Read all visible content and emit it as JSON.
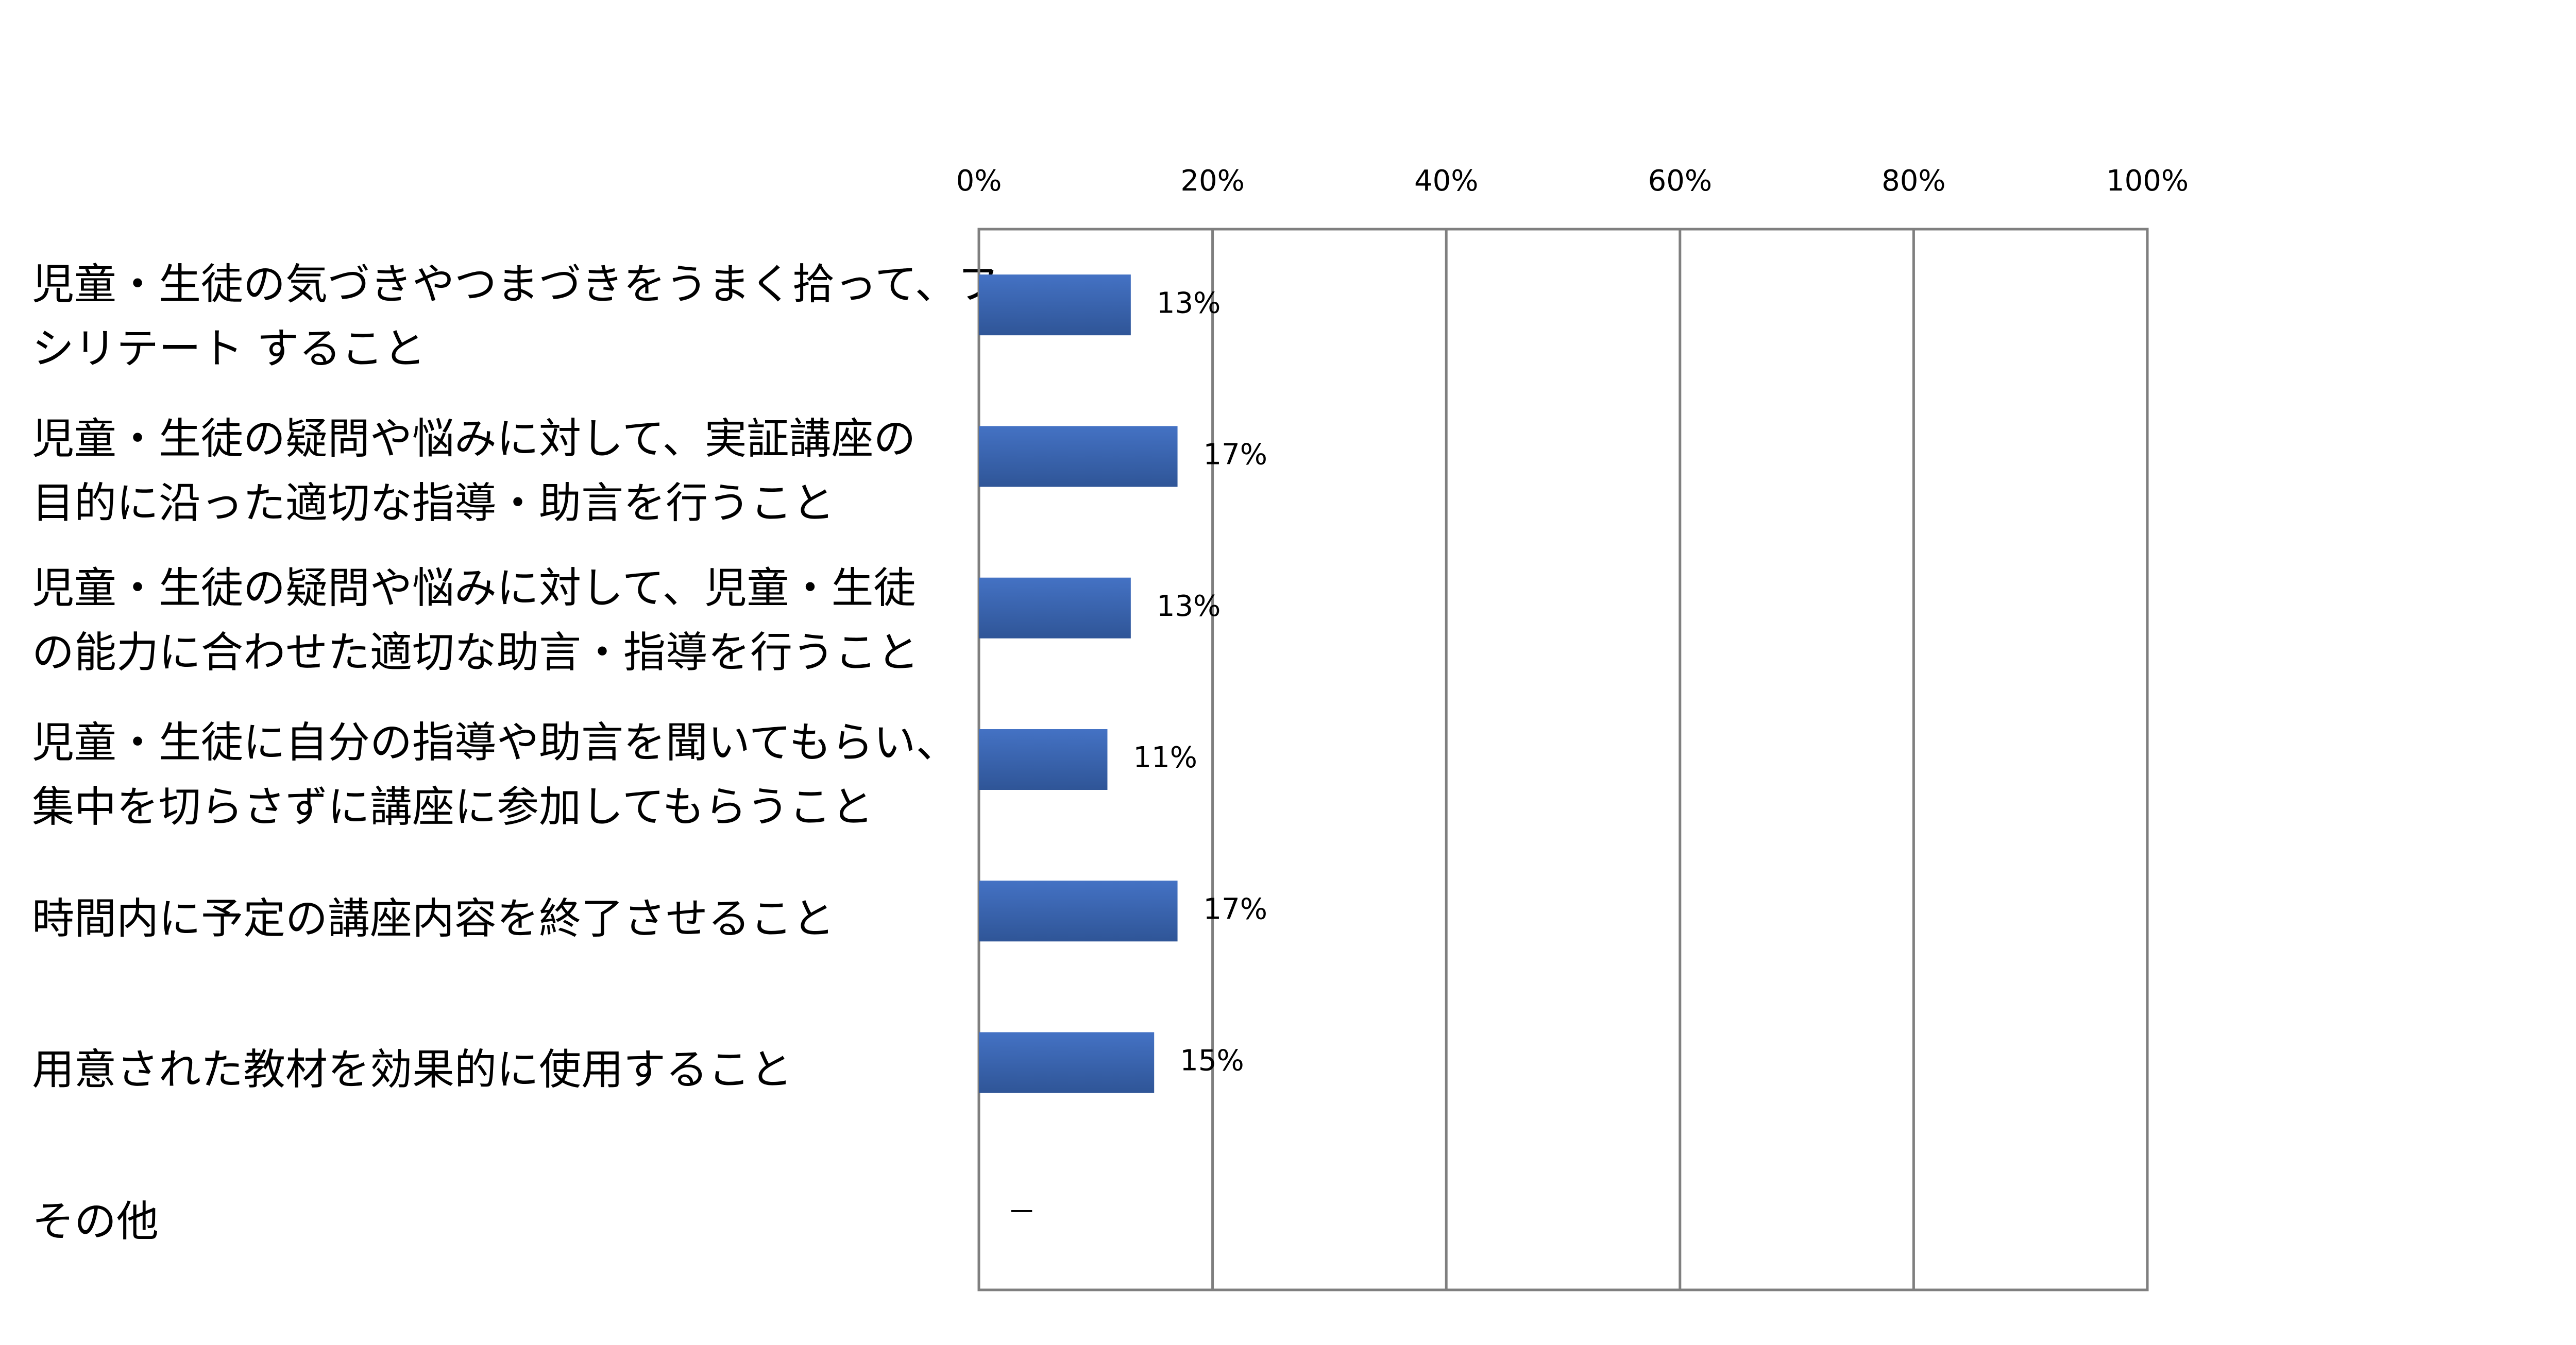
{
  "chart_data": {
    "type": "bar",
    "orientation": "horizontal",
    "categories": [
      "児童・生徒の気づきやつまづきをうまく拾って、ファ\nシリテート すること",
      "児童・生徒の疑問や悩みに対して、実証講座の\n目的に沿った適切な指導・助言を行うこと",
      "児童・生徒の疑問や悩みに対して、児童・生徒\nの能力に合わせた適切な助言・指導を行うこと",
      "児童・生徒に自分の指導や助言を聞いてもらい、\n集中を切らさずに講座に参加してもらうこと",
      "時間内に予定の講座内容を終了させること",
      "用意された教材を効果的に使用すること",
      "その他"
    ],
    "values": [
      13,
      17,
      13,
      11,
      17,
      15,
      null
    ],
    "value_labels": [
      "13%",
      "17%",
      "13%",
      "11%",
      "17%",
      "15%",
      "－"
    ],
    "x_ticks": [
      "0%",
      "20%",
      "40%",
      "60%",
      "80%",
      "100%"
    ],
    "xlim": [
      0,
      100
    ],
    "x_axis_position": "top",
    "grid": true,
    "legend": "none",
    "colors": {
      "bar": "#4472c4",
      "bar_dark": "#2f5597",
      "grid": "#7f7f7f"
    }
  }
}
